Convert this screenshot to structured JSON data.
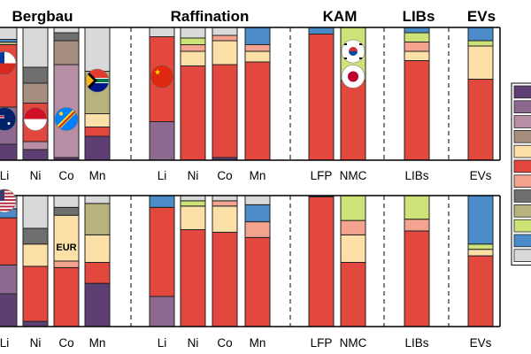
{
  "chart_data": {
    "type": "stacked-bar",
    "sections": [
      {
        "title": "Bergbau"
      },
      {
        "title": "Raffination"
      },
      {
        "title": "KAM"
      },
      {
        "title": "LIBs"
      },
      {
        "title": "EVs"
      }
    ],
    "categories": [
      "Li",
      "Ni",
      "Co",
      "Mn",
      "Li",
      "Ni",
      "Co",
      "Mn",
      "LFP",
      "NMC",
      "LIBs",
      "EVs"
    ],
    "category_section": [
      0,
      0,
      0,
      0,
      1,
      1,
      1,
      1,
      2,
      2,
      3,
      4
    ],
    "legend_colors": [
      "#5e3f73",
      "#8c6a90",
      "#b78ea3",
      "#a78f80",
      "#fde0a8",
      "#e2483e",
      "#f4a48e",
      "#6f6f6f",
      "#b8b27e",
      "#cde377",
      "#4a8bc8",
      "#d9d9d9"
    ],
    "panels": [
      {
        "name": "top",
        "bars": [
          {
            "segments": [
              {
                "color": "#5e3f73",
                "value": 0.12
              },
              {
                "color": "#8c6a90",
                "value": 0.28
              },
              {
                "color": "#e2483e",
                "value": 0.47
              },
              {
                "color": "#b8b27e",
                "value": 0.02
              },
              {
                "color": "#4a8bc8",
                "value": 0.02
              },
              {
                "color": "#d9d9d9",
                "value": 0.09
              }
            ]
          },
          {
            "segments": [
              {
                "color": "#5e3f73",
                "value": 0.08
              },
              {
                "color": "#b78ea3",
                "value": 0.06
              },
              {
                "color": "#e2483e",
                "value": 0.29
              },
              {
                "color": "#a78f80",
                "value": 0.15
              },
              {
                "color": "#6f6f6f",
                "value": 0.12
              },
              {
                "color": "#d9d9d9",
                "value": 0.3
              }
            ]
          },
          {
            "segments": [
              {
                "color": "#5e3f73",
                "value": 0.02
              },
              {
                "color": "#b78ea3",
                "value": 0.7
              },
              {
                "color": "#a78f80",
                "value": 0.18
              },
              {
                "color": "#6f6f6f",
                "value": 0.06
              },
              {
                "color": "#d9d9d9",
                "value": 0.04
              }
            ]
          },
          {
            "segments": [
              {
                "color": "#5e3f73",
                "value": 0.18
              },
              {
                "color": "#e2483e",
                "value": 0.07
              },
              {
                "color": "#fde0a8",
                "value": 0.1
              },
              {
                "color": "#b8b27e",
                "value": 0.32
              },
              {
                "color": "#d9d9d9",
                "value": 0.33
              }
            ]
          },
          {
            "segments": [
              {
                "color": "#8c6a90",
                "value": 0.29
              },
              {
                "color": "#e2483e",
                "value": 0.64
              },
              {
                "color": "#d9d9d9",
                "value": 0.07
              }
            ]
          },
          {
            "segments": [
              {
                "color": "#e2483e",
                "value": 0.71
              },
              {
                "color": "#fde0a8",
                "value": 0.11
              },
              {
                "color": "#f4a48e",
                "value": 0.05
              },
              {
                "color": "#cde377",
                "value": 0.05
              },
              {
                "color": "#d9d9d9",
                "value": 0.08
              }
            ]
          },
          {
            "segments": [
              {
                "color": "#5e3f73",
                "value": 0.02
              },
              {
                "color": "#e2483e",
                "value": 0.7
              },
              {
                "color": "#fde0a8",
                "value": 0.18
              },
              {
                "color": "#f4a48e",
                "value": 0.04
              },
              {
                "color": "#d9d9d9",
                "value": 0.06
              }
            ]
          },
          {
            "segments": [
              {
                "color": "#e2483e",
                "value": 0.74
              },
              {
                "color": "#fde0a8",
                "value": 0.08
              },
              {
                "color": "#f4a48e",
                "value": 0.05
              },
              {
                "color": "#4a8bc8",
                "value": 0.13
              }
            ]
          },
          {
            "segments": [
              {
                "color": "#e2483e",
                "value": 0.95
              },
              {
                "color": "#4a8bc8",
                "value": 0.05
              }
            ]
          },
          {
            "segments": [
              {
                "color": "#e2483e",
                "value": 0.6
              },
              {
                "color": "#cde377",
                "value": 0.4
              }
            ]
          },
          {
            "segments": [
              {
                "color": "#e2483e",
                "value": 0.75
              },
              {
                "color": "#fde0a8",
                "value": 0.07
              },
              {
                "color": "#f4a48e",
                "value": 0.07
              },
              {
                "color": "#cde377",
                "value": 0.07
              },
              {
                "color": "#4a8bc8",
                "value": 0.04
              }
            ]
          },
          {
            "segments": [
              {
                "color": "#e2483e",
                "value": 0.61
              },
              {
                "color": "#fde0a8",
                "value": 0.25
              },
              {
                "color": "#cde377",
                "value": 0.04
              },
              {
                "color": "#4a8bc8",
                "value": 0.1
              }
            ]
          }
        ]
      },
      {
        "name": "bottom",
        "bars": [
          {
            "segments": [
              {
                "color": "#5e3f73",
                "value": 0.25
              },
              {
                "color": "#8c6a90",
                "value": 0.22
              },
              {
                "color": "#e2483e",
                "value": 0.36
              },
              {
                "color": "#4a8bc8",
                "value": 0.07
              },
              {
                "color": "#d9d9d9",
                "value": 0.1
              }
            ]
          },
          {
            "segments": [
              {
                "color": "#5e3f73",
                "value": 0.04
              },
              {
                "color": "#e2483e",
                "value": 0.42
              },
              {
                "color": "#fde0a8",
                "value": 0.17
              },
              {
                "color": "#6f6f6f",
                "value": 0.12
              },
              {
                "color": "#d9d9d9",
                "value": 0.25
              }
            ]
          },
          {
            "segments": [
              {
                "color": "#e2483e",
                "value": 0.45
              },
              {
                "color": "#f4a48e",
                "value": 0.05
              },
              {
                "color": "#fde0a8",
                "value": 0.35
              },
              {
                "color": "#6f6f6f",
                "value": 0.06
              },
              {
                "color": "#d9d9d9",
                "value": 0.09
              }
            ]
          },
          {
            "segments": [
              {
                "color": "#5e3f73",
                "value": 0.33
              },
              {
                "color": "#e2483e",
                "value": 0.16
              },
              {
                "color": "#fde0a8",
                "value": 0.21
              },
              {
                "color": "#b8b27e",
                "value": 0.24
              },
              {
                "color": "#d9d9d9",
                "value": 0.06
              }
            ]
          },
          {
            "segments": [
              {
                "color": "#8c6a90",
                "value": 0.23
              },
              {
                "color": "#e2483e",
                "value": 0.68
              },
              {
                "color": "#4a8bc8",
                "value": 0.09
              }
            ]
          },
          {
            "segments": [
              {
                "color": "#e2483e",
                "value": 0.74
              },
              {
                "color": "#fde0a8",
                "value": 0.18
              },
              {
                "color": "#cde377",
                "value": 0.04
              },
              {
                "color": "#d9d9d9",
                "value": 0.04
              }
            ]
          },
          {
            "segments": [
              {
                "color": "#e2483e",
                "value": 0.72
              },
              {
                "color": "#fde0a8",
                "value": 0.2
              },
              {
                "color": "#f4a48e",
                "value": 0.04
              },
              {
                "color": "#d9d9d9",
                "value": 0.04
              }
            ]
          },
          {
            "segments": [
              {
                "color": "#e2483e",
                "value": 0.68
              },
              {
                "color": "#f4a48e",
                "value": 0.12
              },
              {
                "color": "#4a8bc8",
                "value": 0.13
              },
              {
                "color": "#d9d9d9",
                "value": 0.07
              }
            ]
          },
          {
            "segments": [
              {
                "color": "#e2483e",
                "value": 0.99
              },
              {
                "color": "#5e3f73",
                "value": 0.01
              }
            ]
          },
          {
            "segments": [
              {
                "color": "#e2483e",
                "value": 0.49
              },
              {
                "color": "#fde0a8",
                "value": 0.21
              },
              {
                "color": "#f4a48e",
                "value": 0.11
              },
              {
                "color": "#cde377",
                "value": 0.19
              }
            ]
          },
          {
            "segments": [
              {
                "color": "#e2483e",
                "value": 0.73
              },
              {
                "color": "#f4a48e",
                "value": 0.09
              },
              {
                "color": "#cde377",
                "value": 0.18
              }
            ]
          },
          {
            "segments": [
              {
                "color": "#e2483e",
                "value": 0.54
              },
              {
                "color": "#fde0a8",
                "value": 0.05
              },
              {
                "color": "#cde377",
                "value": 0.04
              },
              {
                "color": "#4a8bc8",
                "value": 0.37
              }
            ]
          }
        ]
      }
    ],
    "bar_labels": [
      {
        "panel": 1,
        "bar": 2,
        "text": "EUR"
      }
    ],
    "flag_icons": [
      {
        "panel": 0,
        "bar": 0,
        "icon": "chile-flag-icon",
        "at": 0.73
      },
      {
        "panel": 0,
        "bar": 0,
        "icon": "australia-flag-icon",
        "at": 0.31
      },
      {
        "panel": 0,
        "bar": 1,
        "icon": "indonesia-flag-icon",
        "at": 0.31
      },
      {
        "panel": 0,
        "bar": 2,
        "icon": "dr-congo-flag-icon",
        "at": 0.31
      },
      {
        "panel": 0,
        "bar": 3,
        "icon": "south-africa-flag-icon",
        "at": 0.6
      },
      {
        "panel": 0,
        "bar": 4,
        "icon": "china-flag-icon",
        "at": 0.63
      },
      {
        "panel": 0,
        "bar": 9,
        "icon": "south-korea-flag-icon",
        "at": 0.82
      },
      {
        "panel": 0,
        "bar": 9,
        "icon": "japan-flag-icon",
        "at": 0.63
      },
      {
        "panel": 1,
        "bar": 0,
        "icon": "usa-flag-icon",
        "at": 0.96
      }
    ],
    "ylim": [
      0,
      1
    ],
    "legend": {
      "position": "right"
    }
  }
}
